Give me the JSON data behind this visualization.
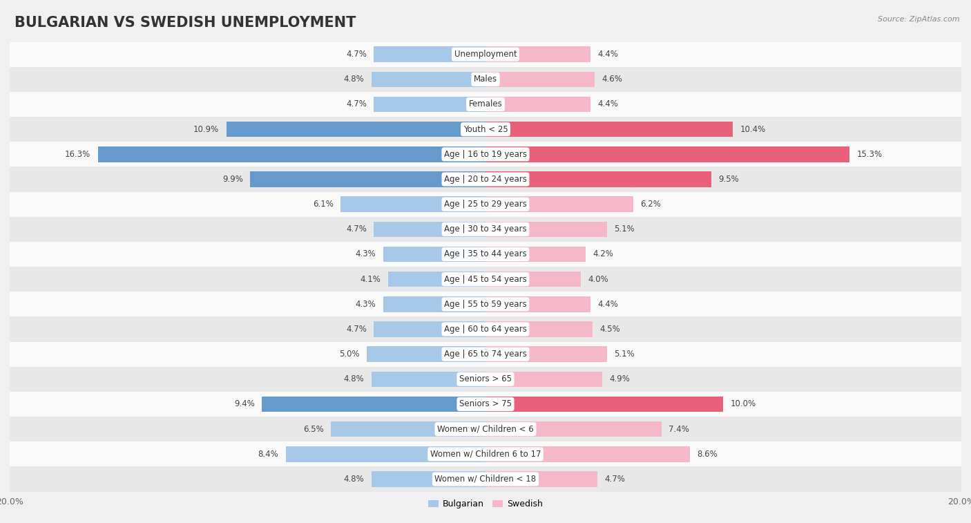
{
  "title": "BULGARIAN VS SWEDISH UNEMPLOYMENT",
  "source": "Source: ZipAtlas.com",
  "categories": [
    "Unemployment",
    "Males",
    "Females",
    "Youth < 25",
    "Age | 16 to 19 years",
    "Age | 20 to 24 years",
    "Age | 25 to 29 years",
    "Age | 30 to 34 years",
    "Age | 35 to 44 years",
    "Age | 45 to 54 years",
    "Age | 55 to 59 years",
    "Age | 60 to 64 years",
    "Age | 65 to 74 years",
    "Seniors > 65",
    "Seniors > 75",
    "Women w/ Children < 6",
    "Women w/ Children 6 to 17",
    "Women w/ Children < 18"
  ],
  "bulgarian": [
    4.7,
    4.8,
    4.7,
    10.9,
    16.3,
    9.9,
    6.1,
    4.7,
    4.3,
    4.1,
    4.3,
    4.7,
    5.0,
    4.8,
    9.4,
    6.5,
    8.4,
    4.8
  ],
  "swedish": [
    4.4,
    4.6,
    4.4,
    10.4,
    15.3,
    9.5,
    6.2,
    5.1,
    4.2,
    4.0,
    4.4,
    4.5,
    5.1,
    4.9,
    10.0,
    7.4,
    8.6,
    4.7
  ],
  "bulgarian_color_normal": "#a8c8e8",
  "bulgarian_color_highlight": "#6699cc",
  "swedish_color_normal": "#f4b8c8",
  "swedish_color_highlight": "#e8607a",
  "background_color": "#f0f0f0",
  "row_color_light": "#fafafa",
  "row_color_dark": "#e8e8e8",
  "max_val": 20.0,
  "bar_height": 0.62,
  "title_fontsize": 15,
  "label_fontsize": 8.5,
  "tick_fontsize": 9,
  "source_fontsize": 8,
  "highlight_threshold": 9.0
}
